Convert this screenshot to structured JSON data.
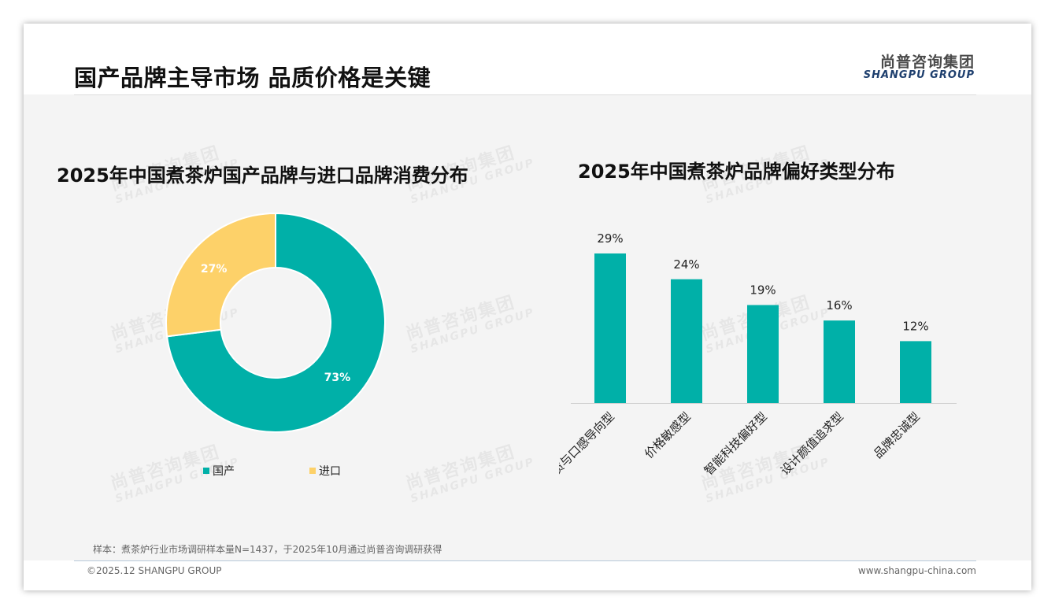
{
  "page": {
    "title": "国产品牌主导市场 品质价格是关键",
    "logo_cn": "尚普咨询集团",
    "logo_en": "SHANGPU GROUP",
    "sample_note": "样本：煮茶炉行业市场调研样本量N=1437，于2025年10月通过尚普咨询调研获得",
    "copyright": "©2025.12 SHANGPU GROUP",
    "website": "www.shangpu-china.com"
  },
  "watermark": {
    "cn": "尚普咨询集团",
    "en": "SHANGPU GROUP"
  },
  "chart_data": [
    {
      "type": "pie",
      "title": "2025年中国煮茶炉国产品牌与进口品牌消费分布",
      "slices": [
        {
          "label": "国产",
          "value": 73,
          "display": "73%",
          "color": "#00b0a8"
        },
        {
          "label": "进口",
          "value": 27,
          "display": "27%",
          "color": "#fdd169"
        }
      ],
      "legend_position": "bottom"
    },
    {
      "type": "bar",
      "title": "2025年中国煮茶炉品牌偏好类型分布",
      "categories": [
        "品质与口感导向型",
        "价格敏感型",
        "智能科技偏好型",
        "设计颜值追求型",
        "品牌忠诚型"
      ],
      "values": [
        29,
        24,
        19,
        16,
        12
      ],
      "labels": [
        "29%",
        "24%",
        "19%",
        "16%",
        "12%"
      ],
      "color": "#00b0a8",
      "ylim": [
        0,
        29
      ],
      "grid": false
    }
  ]
}
